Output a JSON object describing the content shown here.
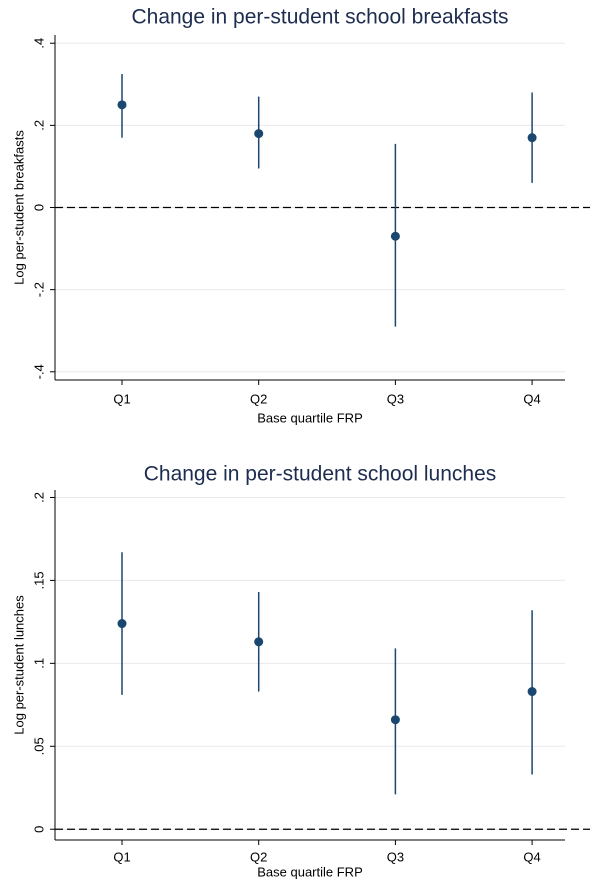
{
  "chart_data": [
    {
      "type": "pointrange",
      "title": "Change in per-student school breakfasts",
      "xlabel": "Base quartile FRP",
      "ylabel": "Log per-student breakfasts",
      "categories": [
        "Q1",
        "Q2",
        "Q3",
        "Q4"
      ],
      "values": [
        0.25,
        0.18,
        -0.07,
        0.17
      ],
      "ci_lower": [
        0.17,
        0.095,
        -0.29,
        0.06
      ],
      "ci_upper": [
        0.325,
        0.27,
        0.155,
        0.28
      ],
      "color": "#1a476f",
      "ylim": [
        -0.42,
        0.42
      ],
      "yticks": [
        {
          "value": -0.4,
          "label": "-.4"
        },
        {
          "value": -0.2,
          "label": "-.2"
        },
        0,
        {
          "value": 0.2,
          "label": ".2"
        },
        {
          "value": 0.4,
          "label": ".4"
        }
      ],
      "grid": true,
      "hline": 0
    },
    {
      "type": "pointrange",
      "title": "Change in per-student school lunches",
      "xlabel": "Base quartile FRP",
      "ylabel": "Log per-student lunches",
      "categories": [
        "Q1",
        "Q2",
        "Q3",
        "Q4"
      ],
      "values": [
        0.124,
        0.113,
        0.066,
        0.083
      ],
      "ci_lower": [
        0.081,
        0.083,
        0.021,
        0.033
      ],
      "ci_upper": [
        0.167,
        0.143,
        0.109,
        0.132
      ],
      "color": "#1a476f",
      "ylim": [
        -0.0065,
        0.2045
      ],
      "yticks": [
        0,
        {
          "value": 0.05,
          "label": ".05"
        },
        {
          "value": 0.1,
          "label": ".1"
        },
        {
          "value": 0.15,
          "label": ".15"
        },
        {
          "value": 0.2,
          "label": ".2"
        }
      ],
      "grid": true,
      "hline": 0
    }
  ]
}
